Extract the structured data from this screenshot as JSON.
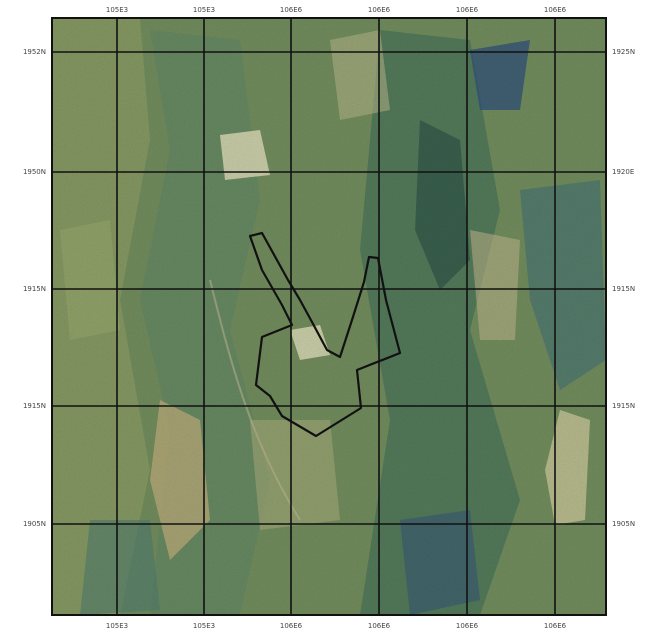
{
  "map": {
    "top_labels": [
      "105E3",
      "105E3",
      "106E6",
      "106E6",
      "106E6",
      "106E6"
    ],
    "bottom_labels": [
      "105E3",
      "105E3",
      "106E6",
      "106E6",
      "106E6",
      "106E6"
    ],
    "left_labels": [
      "1952N",
      "1950N",
      "1915N",
      "1915N",
      "1905N"
    ],
    "right_labels": [
      "1925N",
      "1920E",
      "1915N",
      "1915N",
      "1905N"
    ],
    "colors": {
      "base": "#6f8a5c",
      "green_dark": "#3f6b55",
      "teal": "#3c6b74",
      "tan": "#b9a878",
      "pale": "#d6d3b0",
      "blue": "#2f4f78",
      "grid": "#111111",
      "boundary": "#111111"
    }
  }
}
